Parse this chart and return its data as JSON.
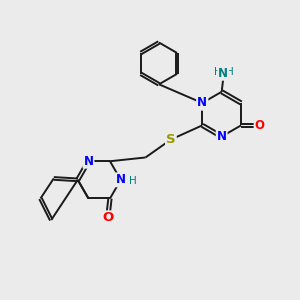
{
  "bg_color": "#ebebeb",
  "bond_color": "#1a1a1a",
  "N_color": "#0000ff",
  "O_color": "#ff0000",
  "S_color": "#999900",
  "NH2_color": "#008080",
  "font_size": 8.5,
  "bond_width": 1.4,
  "dbo": 0.055,
  "xlim": [
    0,
    10
  ],
  "ylim": [
    0,
    10
  ],
  "figsize": [
    3.0,
    3.0
  ],
  "dpi": 100
}
